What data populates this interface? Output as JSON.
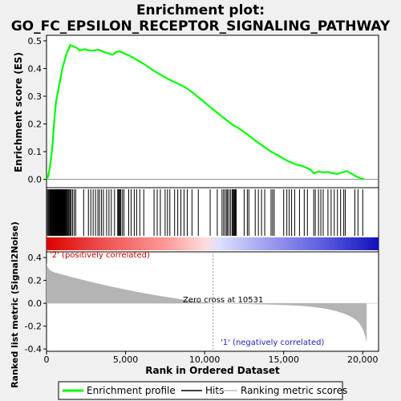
{
  "chart_data": {
    "type": "line",
    "title_line1": "Enrichment plot:",
    "title_line2": "GO_FC_EPSILON_RECEPTOR_SIGNALING_PATHWAY",
    "xlabel": "Rank in Ordered Dataset",
    "ylabel_top": "Enrichment score (ES)",
    "ylabel_bottom": "Ranked list metric (Signal2Noise)",
    "xlim": [
      0,
      21000
    ],
    "x_ticks": [
      0,
      5000,
      10000,
      15000,
      20000
    ],
    "x_tick_labels": [
      "0",
      "5,000",
      "10,000",
      "15,000",
      "20,000"
    ],
    "es_ylim": [
      -0.03,
      0.52
    ],
    "es_ticks": [
      0.0,
      0.1,
      0.2,
      0.3,
      0.4,
      0.5
    ],
    "es_tick_labels": [
      "0.0",
      "0.1",
      "0.2",
      "0.3",
      "0.4",
      "0.5"
    ],
    "metric_ylim": [
      -0.42,
      0.45
    ],
    "metric_ticks": [
      -0.4,
      -0.2,
      0.0,
      0.2,
      0.4
    ],
    "metric_tick_labels": [
      "-0.4",
      "-0.2",
      "0.0",
      "0.2",
      "0.4"
    ],
    "zero_cross": 10531,
    "zero_cross_label": "Zero cross at 10531",
    "pos_label": "'2' (positively correlated)",
    "neg_label": "'1' (negatively correlated)",
    "n_genes": 20250,
    "enrichment_profile": {
      "x": [
        0,
        100,
        200,
        300,
        400,
        500,
        600,
        700,
        800,
        900,
        1000,
        1100,
        1200,
        1300,
        1400,
        1500,
        1700,
        1900,
        2100,
        2400,
        2700,
        3000,
        3300,
        3600,
        3900,
        4200,
        4400,
        4600,
        4800,
        5000,
        5300,
        5700,
        6200,
        6700,
        7200,
        7700,
        8200,
        8700,
        9200,
        9700,
        10200,
        10700,
        11200,
        11700,
        12200,
        12700,
        13200,
        13700,
        14200,
        14700,
        15200,
        15700,
        16200,
        16700,
        16900,
        17200,
        17500,
        17800,
        18100,
        18400,
        18700,
        19000,
        19300,
        19600,
        19900,
        20100
      ],
      "y": [
        0.0,
        0.01,
        0.04,
        0.08,
        0.14,
        0.22,
        0.28,
        0.31,
        0.34,
        0.37,
        0.4,
        0.42,
        0.44,
        0.46,
        0.47,
        0.485,
        0.48,
        0.475,
        0.465,
        0.47,
        0.465,
        0.465,
        0.468,
        0.46,
        0.455,
        0.45,
        0.46,
        0.462,
        0.458,
        0.452,
        0.445,
        0.432,
        0.415,
        0.395,
        0.378,
        0.362,
        0.348,
        0.335,
        0.315,
        0.292,
        0.268,
        0.245,
        0.222,
        0.2,
        0.183,
        0.162,
        0.14,
        0.12,
        0.1,
        0.085,
        0.068,
        0.055,
        0.048,
        0.035,
        0.022,
        0.028,
        0.025,
        0.027,
        0.022,
        0.02,
        0.025,
        0.03,
        0.02,
        0.01,
        0.003,
        0.002
      ]
    },
    "hits": [
      60,
      120,
      170,
      220,
      260,
      300,
      340,
      380,
      410,
      440,
      470,
      500,
      530,
      560,
      590,
      620,
      650,
      680,
      700,
      720,
      740,
      760,
      780,
      800,
      830,
      860,
      890,
      920,
      950,
      980,
      1010,
      1040,
      1070,
      1100,
      1130,
      1160,
      1200,
      1240,
      1280,
      1330,
      1380,
      1430,
      1500,
      1560,
      1650,
      1750,
      1850,
      2350,
      2650,
      2800,
      2950,
      3100,
      3250,
      3350,
      3480,
      3600,
      3800,
      3950,
      4100,
      4300,
      4500,
      4550,
      4600,
      4650,
      4700,
      4800,
      4900,
      5200,
      5350,
      5550,
      5700,
      5900,
      6150,
      6800,
      7000,
      7200,
      7500,
      7650,
      7800,
      8100,
      8300,
      8500,
      8700,
      8900,
      9200,
      9600,
      10350,
      10800,
      11100,
      11200,
      11300,
      11400,
      11450,
      11550,
      11650,
      11750,
      11800,
      11850,
      11900,
      11950,
      12000,
      12500,
      12700,
      12800,
      13200,
      13400,
      13600,
      13800,
      14200,
      14300,
      14400,
      15000,
      15200,
      15350,
      15500,
      15700,
      16000,
      16300,
      16500,
      16900,
      17000,
      17200,
      17350,
      17500,
      17800,
      18000,
      18200,
      18400,
      18600,
      18800,
      18900,
      19500,
      19700,
      20000
    ]
  },
  "legend": {
    "items": [
      {
        "label": "Enrichment profile",
        "color": "#00ff00"
      },
      {
        "label": "Hits",
        "color": "#000000"
      },
      {
        "label": "Ranking metric scores",
        "color": "#c0c0c0"
      }
    ]
  },
  "colors": {
    "profile": "#00ff00",
    "metric_fill": "#b4b4b4",
    "background": "#f0f0f0"
  }
}
